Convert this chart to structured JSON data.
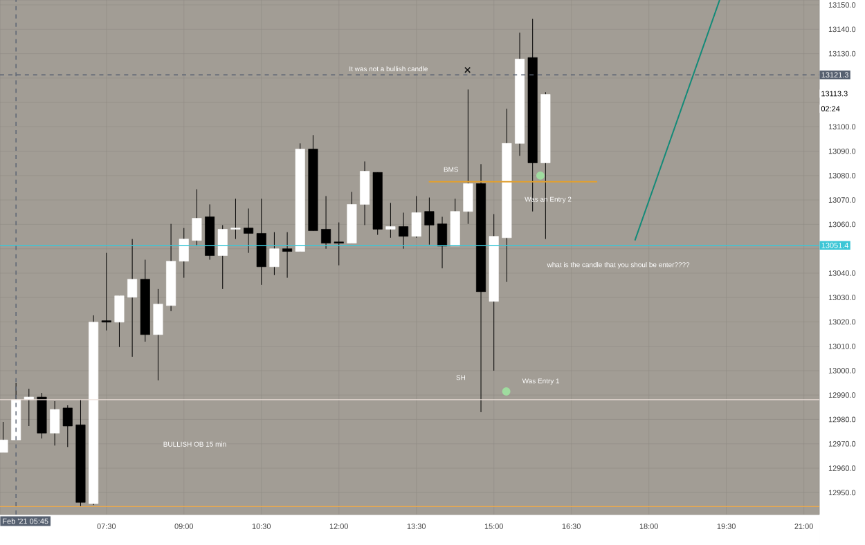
{
  "chart_data": {
    "type": "candlestick",
    "x": [
      5.5,
      5.75,
      6,
      6.25,
      6.5,
      6.75,
      7,
      7.25,
      7.5,
      7.75,
      8,
      8.25,
      8.5,
      8.75,
      9,
      9.25,
      9.5,
      9.75,
      10,
      10.25,
      10.5,
      10.75,
      11,
      11.25,
      11.5,
      11.75,
      12,
      12.25,
      12.5,
      12.75,
      13,
      13.25,
      13.5,
      13.75,
      14,
      14.25,
      14.5,
      14.75,
      15,
      15.25,
      15.5,
      15.75,
      16
    ],
    "ohlc": [
      [
        12966.5,
        12979,
        12966.5,
        12971.6
      ],
      [
        12971.6,
        12994.9,
        12971.6,
        12988.1
      ],
      [
        12988.1,
        12992.6,
        12977.3,
        12989.2
      ],
      [
        12989.2,
        12990.9,
        12972.2,
        12974.4
      ],
      [
        12974.4,
        12987.5,
        12969.3,
        12984.1
      ],
      [
        12984.7,
        12985.8,
        12968.7,
        12977.3
      ],
      [
        12977.8,
        12988.1,
        12944.3,
        12946
      ],
      [
        12945.5,
        13022.7,
        12944.9,
        13019.9
      ],
      [
        13020.5,
        13048.3,
        13016.5,
        13019.9
      ],
      [
        13019.9,
        13030.7,
        13009.7,
        13030.7
      ],
      [
        13030.1,
        13054,
        13005.7,
        13037.5
      ],
      [
        13037.5,
        13045.5,
        13011.9,
        13014.8
      ],
      [
        13014.8,
        13033.5,
        12996,
        13027.3
      ],
      [
        13026.7,
        13060.2,
        13024.4,
        13044.9
      ],
      [
        13044.9,
        13058.5,
        13038.1,
        13054
      ],
      [
        13053.4,
        13074.4,
        13051.1,
        13062.5
      ],
      [
        13063.1,
        13068.2,
        13045.5,
        13047.2
      ],
      [
        13047.2,
        13059.7,
        13033.5,
        13058
      ],
      [
        13058,
        13070.5,
        13054,
        13058.5
      ],
      [
        13058.5,
        13066.5,
        13048.3,
        13056.3
      ],
      [
        13056.3,
        13070.5,
        13035.2,
        13042.6
      ],
      [
        13042.6,
        13056.8,
        13039.2,
        13050
      ],
      [
        13050,
        13056.8,
        13038.1,
        13048.9
      ],
      [
        13048.9,
        13093.2,
        13048.9,
        13090.9
      ],
      [
        13090.9,
        13096.6,
        13057.4,
        13057.4
      ],
      [
        13058,
        13071.6,
        13050,
        13052.3
      ],
      [
        13052.8,
        13060.8,
        13043.2,
        13052.3
      ],
      [
        13052.3,
        13073.3,
        13052.3,
        13068.2
      ],
      [
        13068.2,
        13085.8,
        13059.7,
        13081.8
      ],
      [
        13081.3,
        13081.3,
        13055.7,
        13058
      ],
      [
        13058,
        13068.8,
        13054.5,
        13059.1
      ],
      [
        13059.1,
        13064.8,
        13050,
        13055.1
      ],
      [
        13055.1,
        13071.6,
        13054.5,
        13064.8
      ],
      [
        13065.3,
        13071,
        13051.7,
        13059.7
      ],
      [
        13060.2,
        13063.1,
        13042,
        13051.1
      ],
      [
        13051.1,
        13070.5,
        13051.1,
        13065.3
      ],
      [
        13065.3,
        13115.3,
        13060.2,
        13076.7
      ],
      [
        13076.7,
        13084.7,
        12983,
        13032.4
      ],
      [
        13028.4,
        13064.2,
        13000,
        13055.1
      ],
      [
        13054.5,
        13107.4,
        13036.4,
        13093.2
      ],
      [
        13093.2,
        13138.6,
        13088.1,
        13127.8
      ],
      [
        13128.4,
        13144.3,
        13065.3,
        13085.2
      ],
      [
        13085.2,
        13114.2,
        13054,
        13113.3
      ]
    ],
    "colors": [
      "#ffffff",
      "#ffffff",
      "#ffffff",
      "#000000",
      "#ffffff",
      "#000000",
      "#000000",
      "#ffffff",
      "#000000",
      "#ffffff",
      "#ffffff",
      "#000000",
      "#ffffff",
      "#ffffff",
      "#ffffff",
      "#ffffff",
      "#000000",
      "#ffffff",
      "#ffffff",
      "#000000",
      "#000000",
      "#ffffff",
      "#000000",
      "#ffffff",
      "#000000",
      "#000000",
      "#000000",
      "#ffffff",
      "#ffffff",
      "#000000",
      "#ffffff",
      "#000000",
      "#ffffff",
      "#000000",
      "#000000",
      "#ffffff",
      "#ffffff",
      "#000000",
      "#ffffff",
      "#ffffff",
      "#ffffff",
      "#000000",
      "#ffffff"
    ],
    "series": [
      {
        "type": "line",
        "color": "#138a78",
        "x": [
          17.73,
          19.37
        ],
        "values": [
          13053.4,
          13152
        ]
      },
      {
        "type": "line",
        "color": "#e0a030",
        "x": [
          13.74,
          17.0
        ],
        "values": [
          13077.5,
          13077.5
        ]
      },
      {
        "type": "scatter",
        "marker": "circle",
        "color": "#9fdc9f",
        "x": [
          15.9,
          15.24
        ],
        "values": [
          13080,
          12991.5
        ]
      },
      {
        "type": "scatter",
        "marker": "cross",
        "color": "#111111",
        "x": [
          14.49
        ],
        "values": [
          13123.3
        ]
      }
    ],
    "xlim": [
      5.44,
      21.3
    ],
    "xticks": [
      {
        "value": 7.5,
        "label": "07:30"
      },
      {
        "value": 9,
        "label": "09:00"
      },
      {
        "value": 10.5,
        "label": "10:30"
      },
      {
        "value": 12,
        "label": "12:00"
      },
      {
        "value": 13.5,
        "label": "13:30"
      },
      {
        "value": 15,
        "label": "15:00"
      },
      {
        "value": 16.5,
        "label": "16:30"
      },
      {
        "value": 18,
        "label": "18:00"
      },
      {
        "value": 19.5,
        "label": "19:30"
      },
      {
        "value": 21,
        "label": "21:00"
      }
    ],
    "ylim": [
      12941,
      13152
    ],
    "yticks": [
      {
        "value": 12950,
        "label": "12950.0"
      },
      {
        "value": 12960,
        "label": "12960.0"
      },
      {
        "value": 12970,
        "label": "12970.0"
      },
      {
        "value": 12980,
        "label": "12980.0"
      },
      {
        "value": 12990,
        "label": "12990.0"
      },
      {
        "value": 13000,
        "label": "13000.0"
      },
      {
        "value": 13010,
        "label": "13010.0"
      },
      {
        "value": 13020,
        "label": "13020.0"
      },
      {
        "value": 13030,
        "label": "13030.0"
      },
      {
        "value": 13040,
        "label": "13040.0"
      },
      {
        "value": 13050,
        "label": null
      },
      {
        "value": 13060,
        "label": "13060.0"
      },
      {
        "value": 13070,
        "label": "13070.0"
      },
      {
        "value": 13080,
        "label": "13080.0"
      },
      {
        "value": 13090,
        "label": "13090.0"
      },
      {
        "value": 13100,
        "label": "13100.0"
      },
      {
        "value": 13110,
        "label": null
      },
      {
        "value": 13120,
        "label": null
      },
      {
        "value": 13130,
        "label": "13130.0"
      },
      {
        "value": 13140,
        "label": "13140.0"
      },
      {
        "value": 13150,
        "label": "13150.0"
      }
    ],
    "grid": true,
    "ref_lines": [
      {
        "axis": "y",
        "value": 13121.3,
        "label": "13121.3",
        "color": "#566070",
        "line_style": "dashed"
      },
      {
        "axis": "y",
        "value": 13051.4,
        "label": "13051.4",
        "color": "#3cc6d6",
        "line_style": "solid"
      },
      {
        "axis": "y",
        "value": 12988.1,
        "color": "#ece0da",
        "line_style": "solid"
      },
      {
        "axis": "y",
        "value": 12944.3,
        "color": "#e8a850",
        "line_style": "solid"
      },
      {
        "axis": "x",
        "value": 5.75,
        "color": "#566070",
        "line_style": "dashed"
      }
    ],
    "annotations": [
      "It was not a bullish candle",
      "BMS",
      "Was an Entry 2",
      "what is the candle that you shoul be enter????",
      "SH",
      "Was Entry 1",
      "BULLISH OB 15 min",
      "13113.3",
      "02:24",
      "Feb '21  05:45"
    ]
  }
}
